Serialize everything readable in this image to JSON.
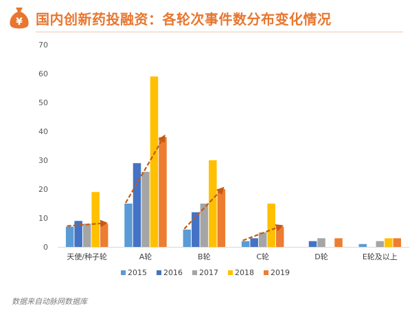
{
  "header": {
    "title": "国内创新药投融资：各轮次事件数分布变化情况",
    "logo_icon": "money-bag-icon",
    "logo_symbol": "¥"
  },
  "colors": {
    "accent": "#e8762f",
    "series": [
      "#5b9bd5",
      "#4472c4",
      "#a5a5a5",
      "#ffc000",
      "#ed7d31"
    ],
    "trend_arrow": "#c55a11"
  },
  "chart_data": {
    "type": "bar",
    "categories": [
      "天使/种子轮",
      "A轮",
      "B轮",
      "C轮",
      "D轮",
      "E轮及以上"
    ],
    "series": [
      {
        "name": "2015",
        "values": [
          7,
          15,
          6,
          2,
          0,
          1
        ]
      },
      {
        "name": "2016",
        "values": [
          9,
          29,
          12,
          3,
          2,
          0
        ]
      },
      {
        "name": "2017",
        "values": [
          8,
          26,
          15,
          5,
          3,
          2
        ]
      },
      {
        "name": "2018",
        "values": [
          19,
          59,
          30,
          15,
          0,
          3
        ]
      },
      {
        "name": "2019",
        "values": [
          8,
          38,
          20,
          7,
          3,
          3
        ]
      }
    ],
    "ylim": [
      0,
      70
    ],
    "yticks": [
      0,
      10,
      20,
      30,
      40,
      50,
      60,
      70
    ],
    "grid": false,
    "legend": "bottom",
    "trend_arrows": [
      {
        "category": "天使/种子轮",
        "from": 7,
        "to": 8
      },
      {
        "category": "A轮",
        "from": 15,
        "to": 38
      },
      {
        "category": "B轮",
        "from": 6,
        "to": 20
      },
      {
        "category": "C轮",
        "from": 2,
        "to": 7
      }
    ]
  },
  "footer": {
    "source": "数据来自动脉网数据库"
  }
}
